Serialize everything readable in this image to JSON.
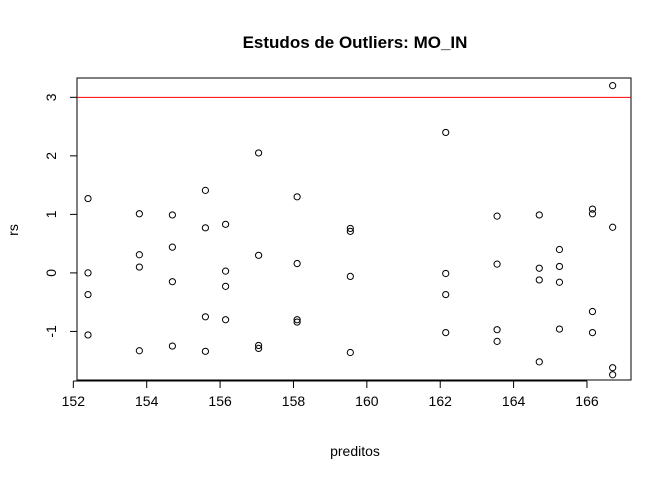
{
  "chart_data": {
    "type": "scatter",
    "title": "Estudos de Outliers:  MO_IN",
    "xlabel": "preditos",
    "ylabel": "rs",
    "xlim": [
      152.1,
      167.2
    ],
    "ylim": [
      -1.83,
      3.33
    ],
    "xticks": [
      152,
      154,
      156,
      158,
      160,
      162,
      164,
      166
    ],
    "xtick_labels": [
      "152",
      "154",
      "156",
      "158",
      "160",
      "162",
      "164",
      "166"
    ],
    "yticks": [
      -1,
      0,
      1,
      2,
      3
    ],
    "ytick_labels": [
      "-1",
      "0",
      "1",
      "2",
      "3"
    ],
    "hline": {
      "y": 3,
      "color": "#ff0000"
    },
    "marker": "open-circle",
    "grid": false,
    "points": [
      {
        "x": 152.4,
        "y": 1.27
      },
      {
        "x": 152.4,
        "y": 0.0
      },
      {
        "x": 152.4,
        "y": -0.37
      },
      {
        "x": 152.4,
        "y": -1.06
      },
      {
        "x": 153.8,
        "y": 1.01
      },
      {
        "x": 153.8,
        "y": 0.31
      },
      {
        "x": 153.8,
        "y": 0.1
      },
      {
        "x": 153.8,
        "y": -1.33
      },
      {
        "x": 154.7,
        "y": 0.99
      },
      {
        "x": 154.7,
        "y": 0.44
      },
      {
        "x": 154.7,
        "y": -0.15
      },
      {
        "x": 154.7,
        "y": -1.25
      },
      {
        "x": 155.6,
        "y": 1.41
      },
      {
        "x": 155.6,
        "y": 0.77
      },
      {
        "x": 155.6,
        "y": -0.75
      },
      {
        "x": 155.6,
        "y": -1.34
      },
      {
        "x": 156.15,
        "y": 0.83
      },
      {
        "x": 156.15,
        "y": 0.03
      },
      {
        "x": 156.15,
        "y": -0.23
      },
      {
        "x": 156.15,
        "y": -0.8
      },
      {
        "x": 157.05,
        "y": 2.05
      },
      {
        "x": 157.05,
        "y": 0.3
      },
      {
        "x": 157.05,
        "y": -1.24
      },
      {
        "x": 157.05,
        "y": -1.29
      },
      {
        "x": 158.1,
        "y": 1.3
      },
      {
        "x": 158.1,
        "y": 0.16
      },
      {
        "x": 158.1,
        "y": -0.8
      },
      {
        "x": 158.1,
        "y": -0.84
      },
      {
        "x": 159.55,
        "y": 0.76
      },
      {
        "x": 159.55,
        "y": 0.71
      },
      {
        "x": 159.55,
        "y": -0.06
      },
      {
        "x": 159.55,
        "y": -1.36
      },
      {
        "x": 162.15,
        "y": 2.4
      },
      {
        "x": 162.15,
        "y": -0.01
      },
      {
        "x": 162.15,
        "y": -0.37
      },
      {
        "x": 162.15,
        "y": -1.02
      },
      {
        "x": 163.55,
        "y": 0.97
      },
      {
        "x": 163.55,
        "y": 0.15
      },
      {
        "x": 163.55,
        "y": -0.97
      },
      {
        "x": 163.55,
        "y": -1.17
      },
      {
        "x": 164.7,
        "y": 0.99
      },
      {
        "x": 164.7,
        "y": 0.08
      },
      {
        "x": 164.7,
        "y": -0.12
      },
      {
        "x": 164.7,
        "y": -1.52
      },
      {
        "x": 165.25,
        "y": 0.4
      },
      {
        "x": 165.25,
        "y": 0.11
      },
      {
        "x": 165.25,
        "y": -0.16
      },
      {
        "x": 165.25,
        "y": -0.96
      },
      {
        "x": 166.15,
        "y": 1.09
      },
      {
        "x": 166.15,
        "y": 1.01
      },
      {
        "x": 166.15,
        "y": -0.66
      },
      {
        "x": 166.15,
        "y": -1.02
      },
      {
        "x": 166.7,
        "y": 3.2
      },
      {
        "x": 166.7,
        "y": 0.78
      },
      {
        "x": 166.7,
        "y": -1.62
      },
      {
        "x": 166.7,
        "y": -1.74
      }
    ]
  }
}
